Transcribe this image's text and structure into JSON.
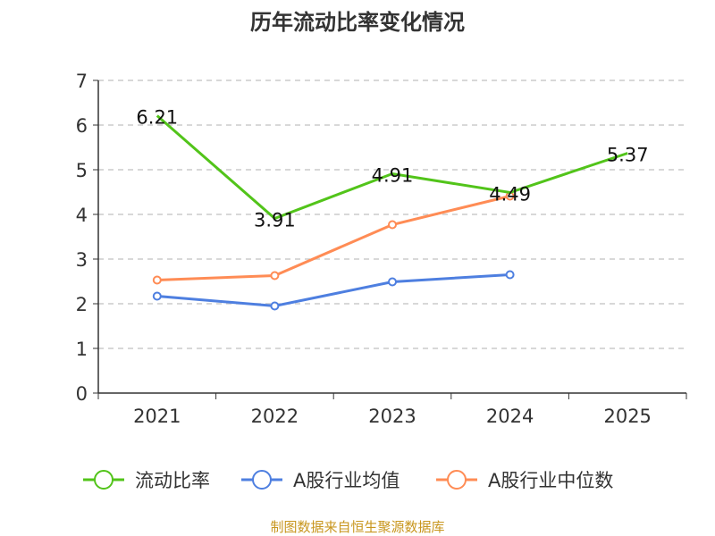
{
  "chart_data": {
    "type": "line",
    "title": "历年流动比率变化情况",
    "categories": [
      "2021",
      "2022",
      "2023",
      "2024",
      "2025"
    ],
    "ylim": [
      0,
      7
    ],
    "yticks": [
      "0",
      "1",
      "2",
      "3",
      "4",
      "5",
      "6",
      "7"
    ],
    "grid": true,
    "legend_position": "bottom",
    "series": [
      {
        "name": "流动比率",
        "color": "#52c41a",
        "values": [
          6.21,
          3.91,
          4.91,
          4.49,
          5.37
        ],
        "labels": [
          "6.21",
          "3.91",
          "4.91",
          "4.49",
          "5.37"
        ]
      },
      {
        "name": "A股行业均值",
        "color": "#4e7fe0",
        "values": [
          2.17,
          1.95,
          2.49,
          2.65,
          null
        ]
      },
      {
        "name": "A股行业中位数",
        "color": "#ff8c55",
        "values": [
          2.53,
          2.63,
          3.77,
          4.41,
          null
        ]
      }
    ]
  },
  "source": "制图数据来自恒生聚源数据库"
}
